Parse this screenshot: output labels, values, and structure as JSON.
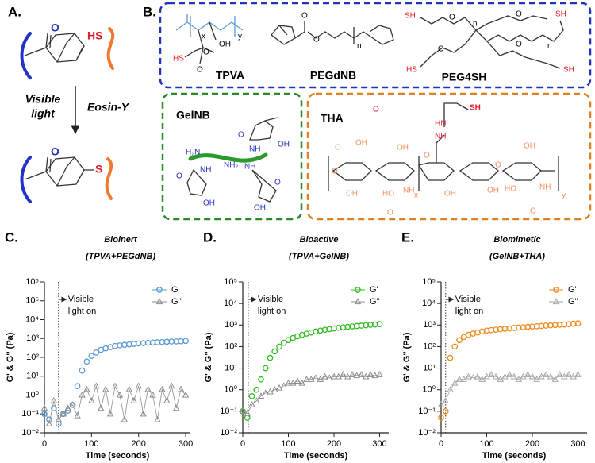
{
  "panel_a": {
    "letter": "A.",
    "reactant": {
      "oxygen": "O",
      "thiol": "HS"
    },
    "conditions": {
      "light": [
        "Visible",
        "light"
      ],
      "catalyst": "Eosin-Y"
    },
    "product": {
      "oxygen": "O",
      "sulfur": "S"
    }
  },
  "panel_b": {
    "letter": "B.",
    "tpva": {
      "name": "TPVA",
      "atoms": [
        "HS",
        "O",
        "O",
        "OH",
        "x",
        "y"
      ]
    },
    "pegdnb": {
      "name": "PEGdNB",
      "atoms": [
        "O",
        "O",
        "n"
      ]
    },
    "peg4sh": {
      "name": "PEG4SH",
      "atoms": [
        "SH",
        "SH",
        "HS",
        "SH",
        "O",
        "O",
        "O",
        "O",
        "n",
        "n"
      ]
    },
    "gelnb": {
      "name": "GelNB",
      "atoms": [
        "H₂N",
        "NH₂",
        "NH",
        "NH",
        "NH",
        "OH",
        "OH",
        "OH",
        "O",
        "O",
        "O"
      ]
    },
    "tha": {
      "name": "THA",
      "atoms": [
        "O",
        "HN",
        "NH",
        "SH",
        "O",
        "OH",
        "O",
        "OH",
        "HO",
        "OH",
        "NH",
        "O",
        "x",
        "O",
        "OH",
        "O",
        "OH",
        "HO",
        "OH",
        "NH",
        "O",
        "y"
      ]
    }
  },
  "chart_data": [
    {
      "type": "line",
      "panel": "C.",
      "title": [
        "Bioinert",
        "(TPVA+PEGdNB)"
      ],
      "xlabel": "Time (seconds)",
      "ylabel": "G' & G'' (Pa)",
      "annotation": [
        "Visible",
        "light on"
      ],
      "light_on_x": 30,
      "x": [
        0,
        10,
        20,
        30,
        40,
        50,
        60,
        70,
        80,
        90,
        100,
        110,
        120,
        130,
        140,
        150,
        160,
        170,
        180,
        190,
        200,
        210,
        220,
        230,
        240,
        250,
        260,
        270,
        280,
        290,
        300
      ],
      "series": [
        {
          "name": "G'",
          "color": "#5b9bd5",
          "marker": "circle",
          "values": [
            0.1,
            0.05,
            0.2,
            0.03,
            0.1,
            0.15,
            0.3,
            3,
            20,
            60,
            120,
            180,
            250,
            300,
            350,
            400,
            430,
            460,
            490,
            520,
            550,
            570,
            590,
            610,
            630,
            650,
            670,
            690,
            700,
            720,
            740
          ]
        },
        {
          "name": "G''",
          "color": "#8c8c8c",
          "marker": "triangle",
          "connect": true,
          "values": [
            0.2,
            0.03,
            0.5,
            0.05,
            0.1,
            0.2,
            0.3,
            0.08,
            1,
            2,
            0.5,
            3,
            0.2,
            2,
            0.1,
            3,
            1,
            0.05,
            2,
            0.5,
            3,
            0.1,
            2,
            1,
            0.05,
            2,
            0.5,
            3,
            0.2,
            2,
            1
          ]
        }
      ],
      "xlim": [
        0,
        310
      ],
      "xticks": [
        0,
        100,
        200,
        300
      ],
      "ylim": [
        0.01,
        1000000
      ],
      "log_y": true,
      "legend": "upper right",
      "yticks": [
        {
          "value": 0.01,
          "label": "10⁻²"
        },
        {
          "value": 0.1,
          "label": "10⁻¹"
        },
        {
          "value": 1,
          "label": "10⁰"
        },
        {
          "value": 10,
          "label": "10¹"
        },
        {
          "value": 100,
          "label": "10²"
        },
        {
          "value": 1000,
          "label": "10³"
        },
        {
          "value": 10000,
          "label": "10⁴"
        },
        {
          "value": 100000,
          "label": "10⁵"
        },
        {
          "value": 1000000,
          "label": "10⁶"
        }
      ]
    },
    {
      "type": "line",
      "panel": "D.",
      "title": [
        "Bioactive",
        "(TPVA+GelNB)"
      ],
      "xlabel": "Time (seconds)",
      "ylabel": "G' & G'' (Pa)",
      "annotation": [
        "Visible",
        "light on"
      ],
      "light_on_x": 12,
      "x": [
        0,
        10,
        20,
        30,
        40,
        50,
        60,
        70,
        80,
        90,
        100,
        110,
        120,
        130,
        140,
        150,
        160,
        170,
        180,
        190,
        200,
        210,
        220,
        230,
        240,
        250,
        260,
        270,
        280,
        290,
        300
      ],
      "series": [
        {
          "name": "G'",
          "color": "#33bb22",
          "marker": "circle",
          "values": [
            0.1,
            0.05,
            0.5,
            1,
            3,
            10,
            30,
            60,
            100,
            150,
            200,
            250,
            300,
            350,
            400,
            450,
            500,
            550,
            600,
            650,
            700,
            740,
            780,
            820,
            860,
            900,
            940,
            980,
            1020,
            1060,
            1100
          ]
        },
        {
          "name": "G''",
          "color": "#8c8c8c",
          "marker": "triangle",
          "connect": true,
          "values": [
            0.1,
            0.08,
            0.2,
            0.3,
            0.5,
            0.7,
            0.8,
            1,
            1.2,
            1.5,
            2,
            2,
            2.5,
            2,
            3,
            3,
            3.5,
            3,
            4,
            3.5,
            4,
            4,
            5,
            4,
            5,
            4.5,
            5,
            4,
            5,
            4.5,
            5
          ]
        }
      ],
      "xlim": [
        0,
        320
      ],
      "xticks": [
        0,
        100,
        200,
        300
      ],
      "ylim": [
        0.01,
        100000
      ],
      "log_y": true,
      "legend": "upper right",
      "yticks": [
        {
          "value": 0.01,
          "label": "10⁻²"
        },
        {
          "value": 0.1,
          "label": "10⁻¹"
        },
        {
          "value": 1,
          "label": "10⁰"
        },
        {
          "value": 10,
          "label": "10¹"
        },
        {
          "value": 100,
          "label": "10²"
        },
        {
          "value": 1000,
          "label": "10³"
        },
        {
          "value": 10000,
          "label": "10⁴"
        },
        {
          "value": 100000,
          "label": "10⁵"
        }
      ]
    },
    {
      "type": "line",
      "panel": "E.",
      "title": [
        "Biomimetic",
        "(GelNB+THA)"
      ],
      "xlabel": "Time (seconds)",
      "ylabel": "G' & G'' (Pa)",
      "annotation": [
        "Visible",
        "light on"
      ],
      "light_on_x": 10,
      "x": [
        0,
        10,
        20,
        30,
        40,
        50,
        60,
        70,
        80,
        90,
        100,
        110,
        120,
        130,
        140,
        150,
        160,
        170,
        180,
        190,
        200,
        210,
        220,
        230,
        240,
        250,
        260,
        270,
        280,
        290,
        300
      ],
      "series": [
        {
          "name": "G'",
          "color": "#f08a1c",
          "marker": "circle",
          "values": [
            0.05,
            0.1,
            30,
            100,
            200,
            280,
            350,
            400,
            450,
            500,
            550,
            580,
            610,
            640,
            670,
            700,
            730,
            760,
            790,
            820,
            850,
            880,
            910,
            940,
            970,
            1000,
            1030,
            1060,
            1100,
            1150,
            1200
          ]
        },
        {
          "name": "G''",
          "color": "#a6a6a6",
          "marker": "triangle",
          "connect": true,
          "values": [
            0.2,
            0.3,
            1,
            2,
            3,
            3,
            4,
            3.5,
            4,
            3,
            4,
            5,
            4,
            3,
            4,
            5,
            4,
            3,
            4,
            5,
            4,
            3,
            4,
            5,
            4,
            3,
            5,
            4,
            5,
            4,
            5
          ]
        }
      ],
      "xlim": [
        0,
        320
      ],
      "xticks": [
        0,
        100,
        200,
        300
      ],
      "ylim": [
        0.01,
        100000
      ],
      "log_y": true,
      "legend": "upper right",
      "yticks": [
        {
          "value": 0.01,
          "label": "10⁻²"
        },
        {
          "value": 0.1,
          "label": "10⁻¹"
        },
        {
          "value": 1,
          "label": "10⁰"
        },
        {
          "value": 10,
          "label": "10¹"
        },
        {
          "value": 100,
          "label": "10²"
        },
        {
          "value": 1000,
          "label": "10³"
        },
        {
          "value": 10000,
          "label": "10⁴"
        },
        {
          "value": 100000,
          "label": "10⁵"
        }
      ]
    }
  ]
}
